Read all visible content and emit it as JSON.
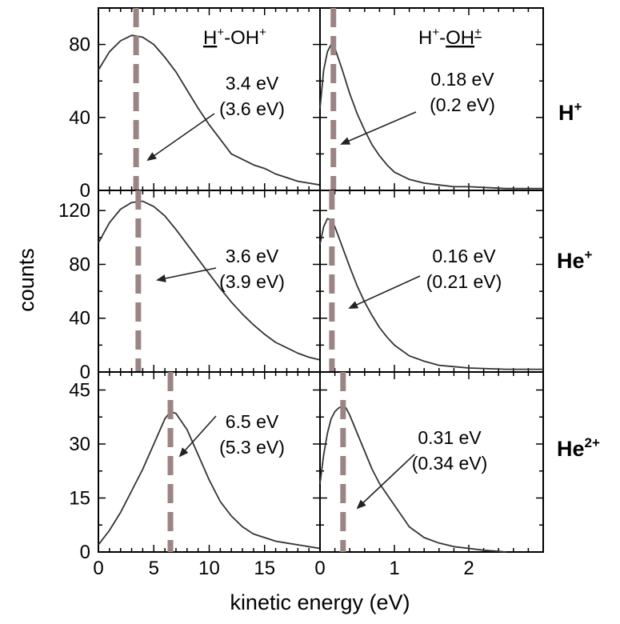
{
  "colors": {
    "curve": "#333333",
    "peak_marker": "#9b8484",
    "axis": "#000000",
    "arrow": "#222222"
  },
  "axes": {
    "xlabel": "kinetic energy (eV)",
    "ylabel": "counts"
  },
  "projectiles": [
    "H+",
    "He+",
    "He2+"
  ],
  "chart_data": [
    {
      "type": "line",
      "panel": "row1-left",
      "projectile": "H+",
      "fragment": "H+ (from H+-OH+)",
      "title": "H+-OH+",
      "xlim": [
        0,
        20
      ],
      "ylim": [
        0,
        100
      ],
      "xticks": [
        0,
        5,
        10,
        15
      ],
      "yticks": [
        0,
        40,
        80
      ],
      "series": [
        {
          "x": [
            0,
            1,
            2,
            3,
            4,
            5,
            6,
            7,
            8,
            9,
            10,
            11,
            12,
            13,
            14,
            15,
            16,
            17,
            18,
            19,
            20
          ],
          "y": [
            66,
            76,
            82,
            85,
            84,
            80,
            73,
            65,
            55,
            45,
            36,
            28,
            20,
            17,
            14,
            12,
            9,
            7,
            5,
            4,
            3
          ]
        }
      ],
      "peak_line_x": 3.4,
      "annotation": {
        "line1": "3.4 eV",
        "line2": "(3.6 eV)"
      }
    },
    {
      "type": "line",
      "panel": "row1-right",
      "projectile": "H+",
      "fragment": "OH+ (from H+-OH+)",
      "title": "H+-OH+",
      "xlim": [
        0,
        3
      ],
      "ylim": [
        0,
        100
      ],
      "xticks": [
        0,
        1,
        2
      ],
      "yticks": [
        0,
        40,
        80
      ],
      "series": [
        {
          "x": [
            0,
            0.05,
            0.1,
            0.15,
            0.2,
            0.3,
            0.4,
            0.5,
            0.6,
            0.7,
            0.8,
            0.9,
            1.0,
            1.2,
            1.4,
            1.6,
            1.8,
            2.0,
            2.5,
            3.0
          ],
          "y": [
            45,
            66,
            76,
            80,
            78,
            66,
            53,
            42,
            33,
            25,
            19,
            14,
            10,
            6,
            4,
            3,
            2,
            2,
            1,
            1
          ]
        }
      ],
      "peak_line_x": 0.18,
      "annotation": {
        "line1": "0.18 eV",
        "line2": "(0.2 eV)"
      }
    },
    {
      "type": "line",
      "panel": "row2-left",
      "projectile": "He+",
      "fragment": "H+ (from H+-OH+)",
      "xlim": [
        0,
        20
      ],
      "ylim": [
        0,
        135
      ],
      "xticks": [
        0,
        5,
        10,
        15
      ],
      "yticks": [
        0,
        40,
        80,
        120
      ],
      "series": [
        {
          "x": [
            0,
            1,
            2,
            3,
            4,
            5,
            6,
            7,
            8,
            9,
            10,
            11,
            12,
            13,
            14,
            15,
            16,
            17,
            18,
            19,
            20
          ],
          "y": [
            96,
            111,
            121,
            126,
            127,
            123,
            116,
            106,
            95,
            84,
            73,
            62,
            52,
            43,
            35,
            28,
            22,
            18,
            14,
            11,
            9
          ]
        }
      ],
      "peak_line_x": 3.6,
      "annotation": {
        "line1": "3.6 eV",
        "line2": "(3.9 eV)"
      }
    },
    {
      "type": "line",
      "panel": "row2-right",
      "projectile": "He+",
      "fragment": "OH+ (from H+-OH+)",
      "xlim": [
        0,
        3
      ],
      "ylim": [
        0,
        135
      ],
      "xticks": [
        0,
        1,
        2
      ],
      "yticks": [
        0,
        40,
        80,
        120
      ],
      "series": [
        {
          "x": [
            0,
            0.05,
            0.1,
            0.15,
            0.2,
            0.3,
            0.4,
            0.5,
            0.6,
            0.7,
            0.8,
            0.9,
            1.0,
            1.2,
            1.4,
            1.6,
            1.8,
            2.0,
            2.5,
            3.0
          ],
          "y": [
            95,
            108,
            114,
            113,
            108,
            93,
            78,
            64,
            52,
            42,
            33,
            26,
            20,
            12,
            8,
            5,
            4,
            3,
            2,
            2
          ]
        }
      ],
      "peak_line_x": 0.16,
      "annotation": {
        "line1": "0.16 eV",
        "line2": "(0.21 eV)"
      }
    },
    {
      "type": "line",
      "panel": "row3-left",
      "projectile": "He2+",
      "fragment": "H+ (from H+-OH+)",
      "xlim": [
        0,
        20
      ],
      "ylim": [
        0,
        50
      ],
      "xticks": [
        0,
        5,
        10,
        15
      ],
      "yticks": [
        0,
        15,
        30,
        45
      ],
      "series": [
        {
          "x": [
            0,
            1,
            2,
            3,
            4,
            5,
            6,
            6.5,
            7,
            8,
            9,
            10,
            11,
            12,
            13,
            14,
            15,
            16,
            17,
            18,
            19,
            20
          ],
          "y": [
            2,
            6,
            11,
            17,
            23,
            30,
            37,
            39,
            38.5,
            34,
            27,
            20,
            14,
            10,
            7,
            5,
            4,
            3,
            2.5,
            2,
            1.5,
            1
          ]
        }
      ],
      "peak_line_x": 6.5,
      "annotation": {
        "line1": "6.5 eV",
        "line2": "(5.3 eV)"
      }
    },
    {
      "type": "line",
      "panel": "row3-right",
      "projectile": "He2+",
      "fragment": "OH+ (from H+-OH+)",
      "xlim": [
        0,
        3
      ],
      "ylim": [
        0,
        50
      ],
      "xticks": [
        0,
        1,
        2
      ],
      "yticks": [
        0,
        15,
        30,
        45
      ],
      "series": [
        {
          "x": [
            0,
            0.05,
            0.1,
            0.15,
            0.2,
            0.25,
            0.3,
            0.35,
            0.4,
            0.5,
            0.6,
            0.7,
            0.8,
            0.9,
            1.0,
            1.2,
            1.4,
            1.6,
            1.8,
            2.0,
            2.2,
            2.4,
            2.5
          ],
          "y": [
            19,
            27,
            33,
            37,
            39,
            40,
            40.5,
            40,
            38,
            33,
            28,
            23,
            19,
            16,
            13,
            7,
            4,
            2.5,
            1.5,
            1,
            0.5,
            0.2,
            0
          ]
        }
      ],
      "peak_line_x": 0.31,
      "annotation": {
        "line1": "0.31 eV",
        "line2": "(0.34 eV)"
      }
    }
  ]
}
